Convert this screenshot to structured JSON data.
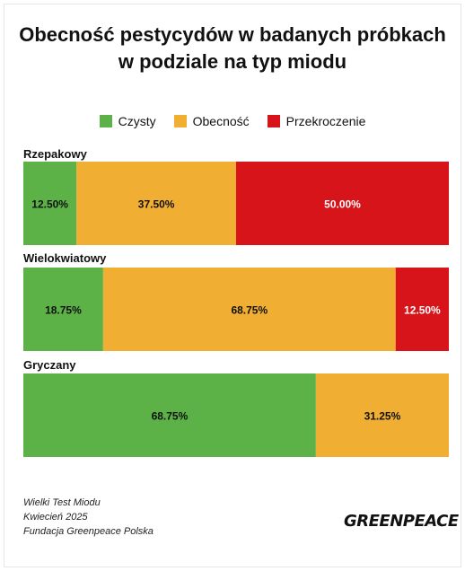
{
  "chart_data": {
    "type": "bar",
    "orientation": "horizontal",
    "stacked": true,
    "normalized": true,
    "title_lines": [
      "Obecność pestycydów w badanych próbkach",
      "w podziale na typ miodu"
    ],
    "categories": [
      "Rzepakowy",
      "Wielokwiatowy",
      "Gryczany"
    ],
    "series": [
      {
        "name": "Czysty",
        "color": "#5cb247",
        "values": [
          12.5,
          18.75,
          68.75
        ],
        "labels": [
          "12.50%",
          "18.75%",
          "68.75%"
        ]
      },
      {
        "name": "Obecność",
        "color": "#f0ae32",
        "values": [
          37.5,
          68.75,
          31.25
        ],
        "labels": [
          "37.50%",
          "68.75%",
          "31.25%"
        ]
      },
      {
        "name": "Przekroczenie",
        "color": "#d8141b",
        "values": [
          50.0,
          12.5,
          0
        ],
        "labels": [
          "50.00%",
          "12.50%",
          ""
        ]
      }
    ],
    "xlim": [
      0,
      100
    ],
    "legend_position": "top-center",
    "grid": false
  },
  "footer": {
    "lines": [
      "Wielki Test Miodu",
      "Kwiecień 2025",
      "Fundacja Greenpeace Polska"
    ]
  },
  "logo_text": "GREENPEACE"
}
